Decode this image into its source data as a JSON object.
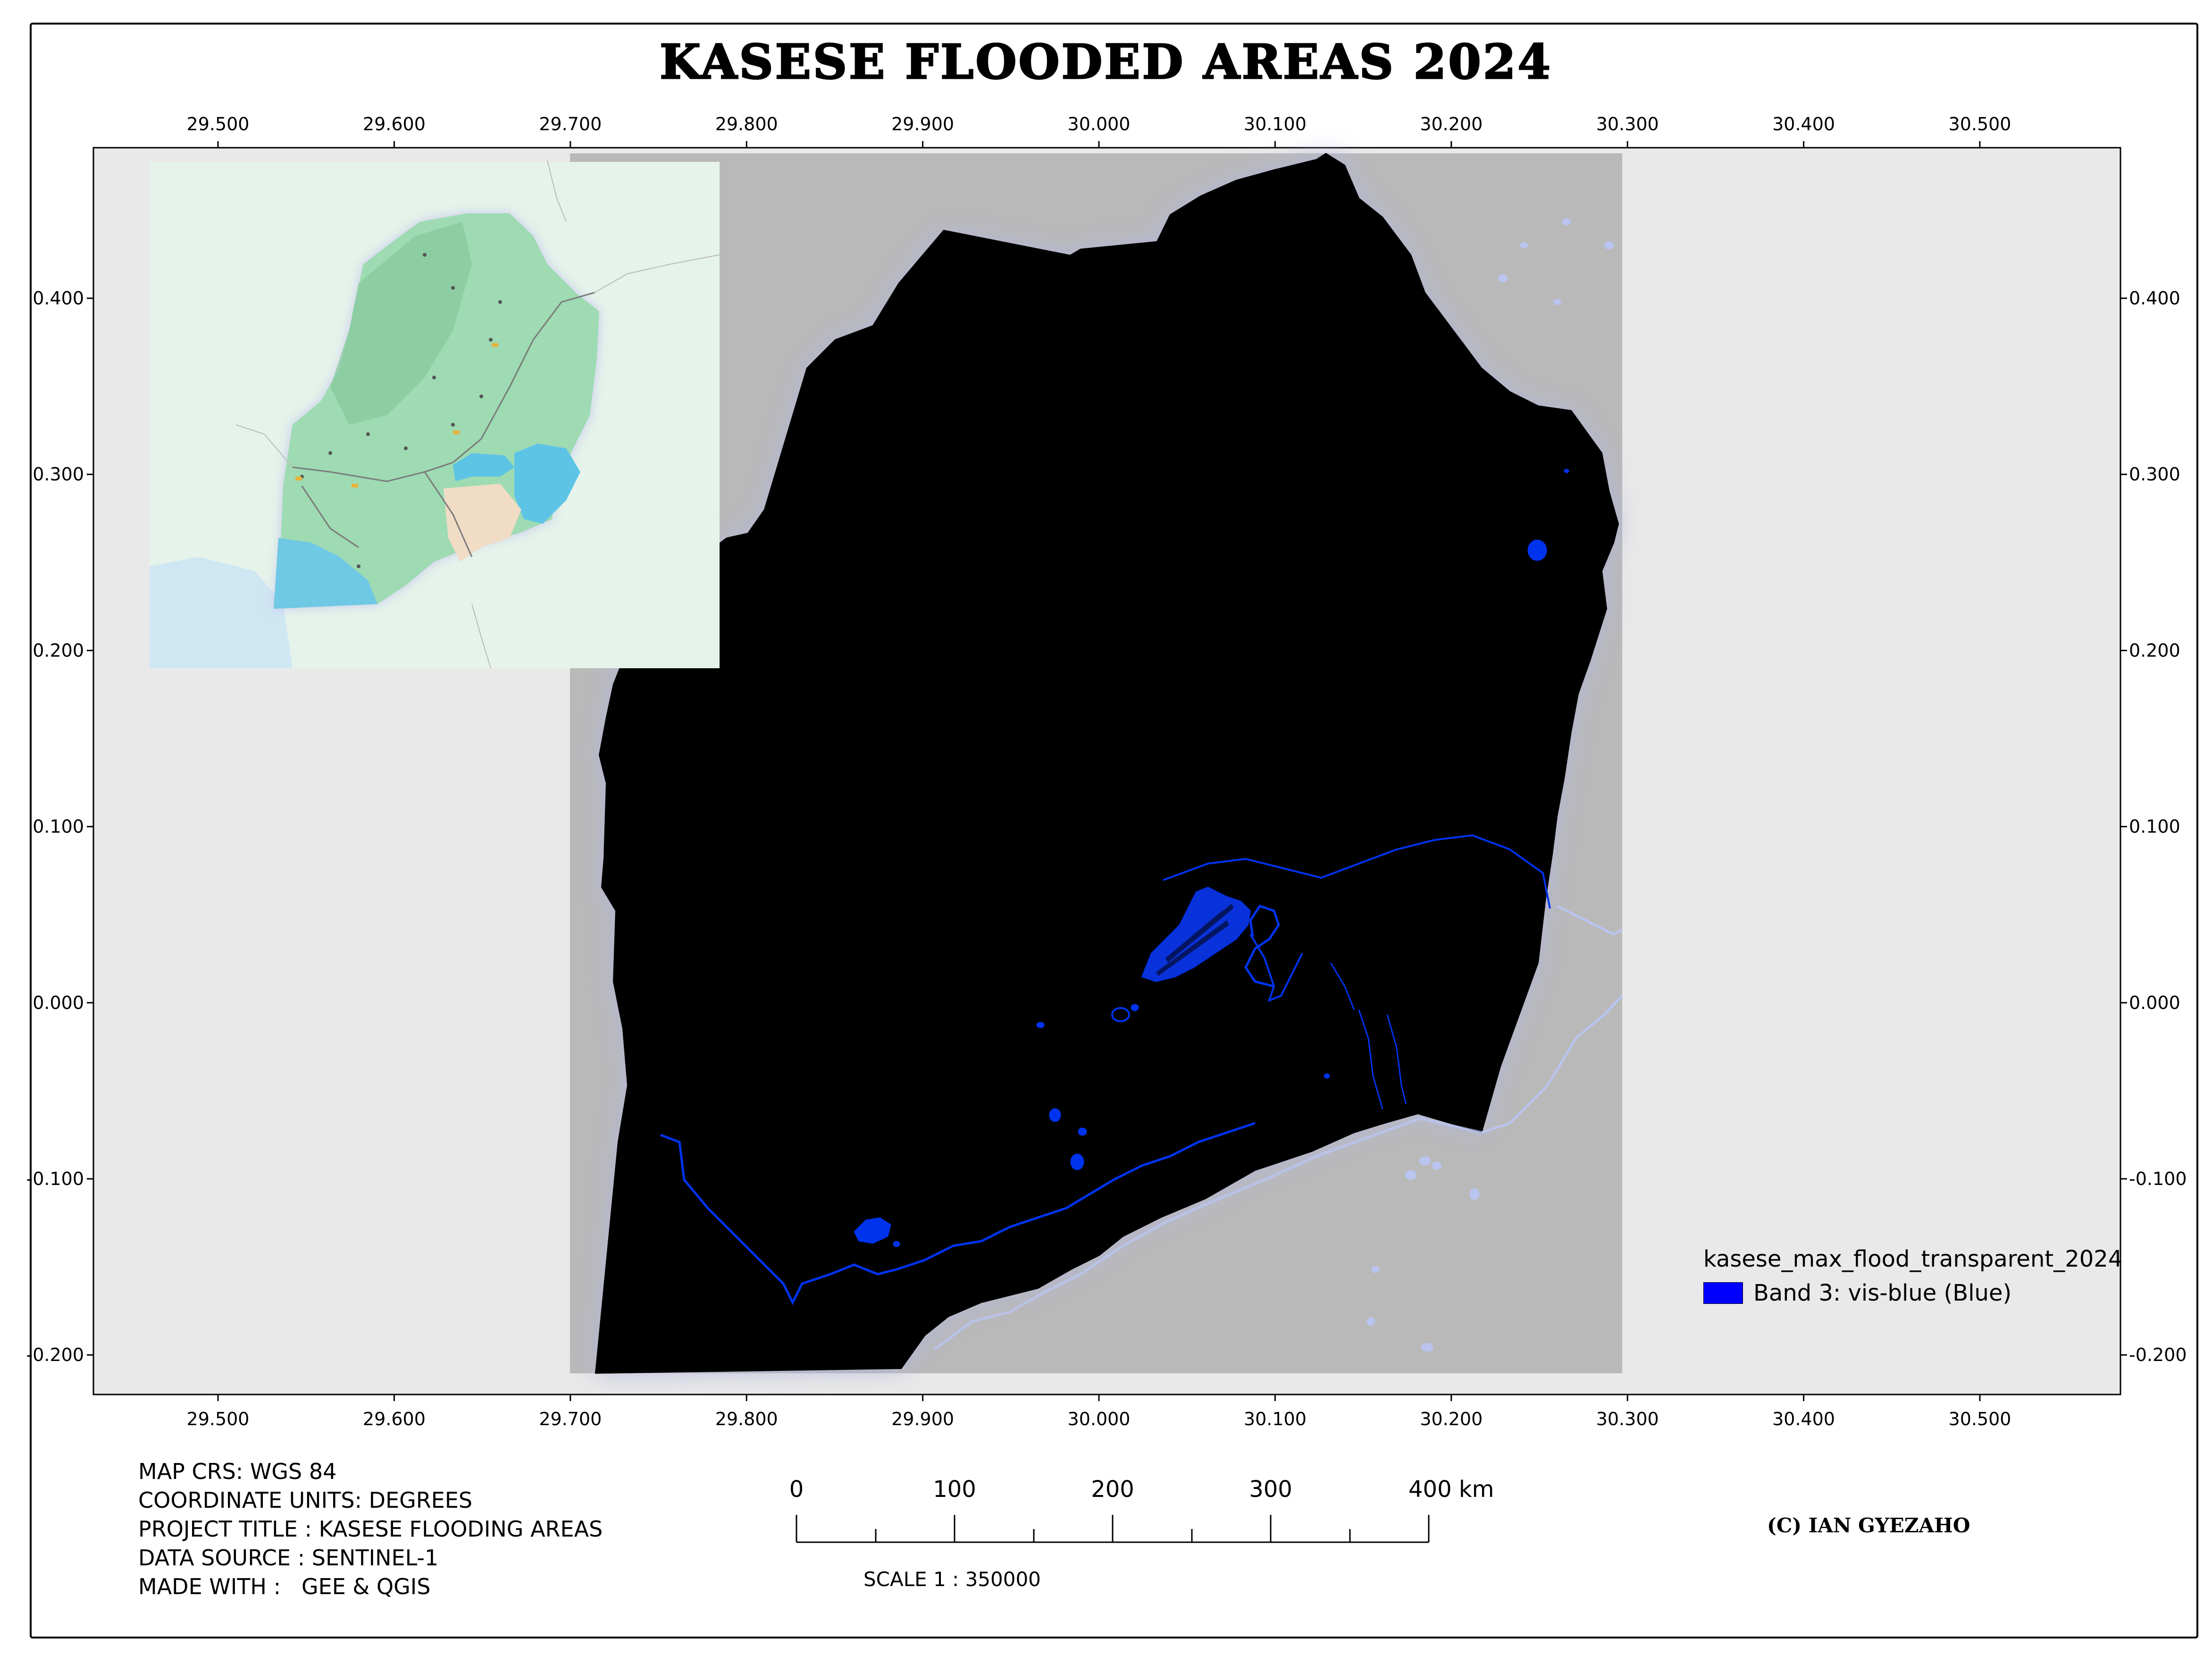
{
  "title": "KASESE FLOODED AREAS 2024",
  "axes": {
    "x_ticks": [
      "29.500",
      "29.600",
      "29.700",
      "29.800",
      "29.900",
      "30.000",
      "30.100",
      "30.200",
      "30.300",
      "30.400",
      "30.500"
    ],
    "y_ticks": [
      "0.400",
      "0.300",
      "0.200",
      "0.100",
      "0.000",
      "-0.100",
      "-0.200"
    ]
  },
  "legend": {
    "layer_name": "kasese_max_flood_transparent_2024",
    "item_label": "Band 3: vis-blue (Blue)",
    "item_color": "#0000ff"
  },
  "metadata": [
    "MAP CRS: WGS 84",
    "COORDINATE UNITS: DEGREES",
    "PROJECT TITLE : KASESE FLOODING AREAS",
    "DATA SOURCE : SENTINEL-1",
    "MADE WITH :   GEE & QGIS"
  ],
  "scalebar": {
    "labels": [
      "0",
      "100",
      "200",
      "300",
      "400 km"
    ],
    "caption": "SCALE 1 : 350000"
  },
  "credit": "(C) IAN GYEZAHO",
  "colors": {
    "map_background": "#e9e9e9",
    "raster_extent": "#b9b9b9",
    "district_fill": "#000000",
    "flood": "#0033ee",
    "water": "#b9c4ef"
  }
}
